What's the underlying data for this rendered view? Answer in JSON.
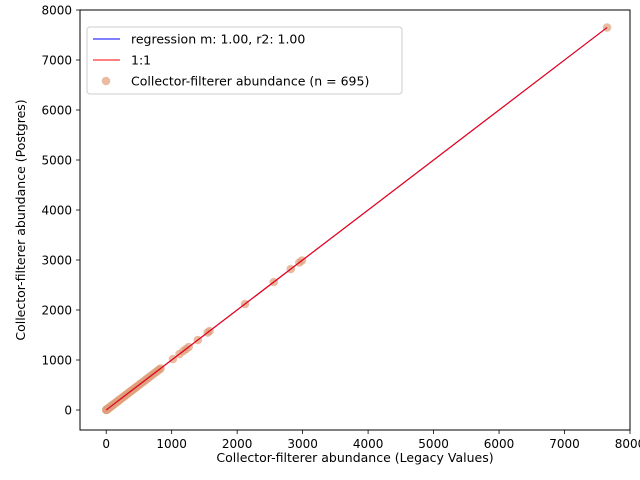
{
  "chart_data": {
    "type": "scatter",
    "title": "",
    "xlabel": "Collector-filterer abundance (Legacy Values)",
    "ylabel": "Collector-filterer abundance (Postgres)",
    "xlim": [
      -400,
      8000
    ],
    "ylim": [
      -400,
      8000
    ],
    "xticks": [
      "0",
      "1000",
      "2000",
      "3000",
      "4000",
      "5000",
      "6000",
      "7000",
      "8000"
    ],
    "yticks": [
      "0",
      "1000",
      "2000",
      "3000",
      "4000",
      "5000",
      "6000",
      "7000",
      "8000"
    ],
    "grid": false,
    "legend_position": "top-left",
    "series": [
      {
        "name": "regression m: 1.00, r2: 1.00",
        "kind": "line",
        "color": "#0000ff",
        "x": [
          0,
          7650
        ],
        "y": [
          0,
          7650
        ]
      },
      {
        "name": "1:1",
        "kind": "line",
        "color": "#ff0000",
        "x": [
          0,
          7650
        ],
        "y": [
          0,
          7650
        ]
      },
      {
        "name": "Collector-filterer abundance (n = 695)",
        "kind": "scatter",
        "color": "#e0a07a",
        "x": [
          0,
          3,
          6,
          10,
          14,
          18,
          22,
          27,
          32,
          38,
          45,
          52,
          60,
          68,
          77,
          86,
          96,
          106,
          117,
          128,
          140,
          152,
          165,
          178,
          192,
          206,
          220,
          235,
          250,
          266,
          282,
          298,
          315,
          332,
          350,
          368,
          386,
          405,
          424,
          444,
          464,
          485,
          506,
          528,
          550,
          572,
          595,
          618,
          641,
          665,
          690,
          715,
          740,
          765,
          790,
          815,
          830,
          1020,
          1120,
          1180,
          1220,
          1260,
          1400,
          1550,
          1580,
          2120,
          2560,
          2820,
          2950,
          2990,
          7650
        ],
        "y": [
          0,
          3,
          6,
          10,
          14,
          18,
          22,
          27,
          32,
          38,
          45,
          52,
          60,
          68,
          77,
          86,
          96,
          106,
          117,
          128,
          140,
          152,
          165,
          178,
          192,
          206,
          220,
          235,
          250,
          266,
          282,
          298,
          315,
          332,
          350,
          368,
          386,
          405,
          424,
          444,
          464,
          485,
          506,
          528,
          550,
          572,
          595,
          618,
          641,
          665,
          690,
          715,
          740,
          765,
          790,
          815,
          830,
          1020,
          1120,
          1180,
          1220,
          1260,
          1400,
          1550,
          1580,
          2120,
          2560,
          2820,
          2950,
          2990,
          7650
        ]
      }
    ]
  }
}
